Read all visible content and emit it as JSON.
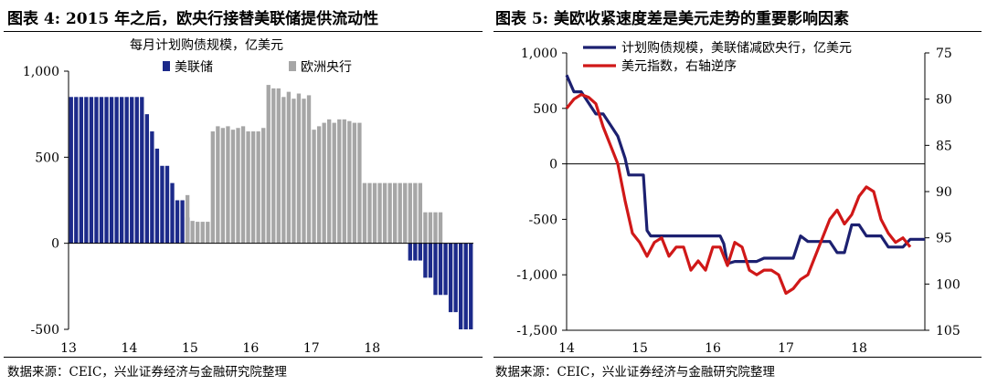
{
  "left": {
    "title": "图表 4:  2015 年之后，欧央行接替美联储提供流动性",
    "source": "数据来源：CEIC，兴业证券经济与金融研究院整理",
    "chart_data": {
      "type": "bar",
      "title": "每月计划购债规模，亿美元",
      "ylim": [
        -500,
        1000
      ],
      "yticks": [
        -500,
        0,
        500,
        1000
      ],
      "ytick_labels": [
        "-500",
        "0",
        "500",
        "1,000"
      ],
      "xticks": [
        {
          "year": 2013,
          "label": "13"
        },
        {
          "year": 2014,
          "label": "14"
        },
        {
          "year": 2015,
          "label": "15"
        },
        {
          "year": 2016,
          "label": "16"
        },
        {
          "year": 2017,
          "label": "17"
        },
        {
          "year": 2018,
          "label": "18"
        }
      ],
      "x_start_year": 2013,
      "legend_position": "top",
      "series": [
        {
          "name": "美联储",
          "color": "#1c2a8a",
          "values": [
            850,
            850,
            850,
            850,
            850,
            850,
            850,
            850,
            850,
            850,
            850,
            850,
            850,
            850,
            850,
            750,
            650,
            550,
            450,
            450,
            350,
            250,
            250,
            150,
            0,
            0,
            0,
            0,
            0,
            0,
            0,
            0,
            0,
            0,
            0,
            0,
            0,
            0,
            0,
            0,
            0,
            0,
            0,
            0,
            0,
            0,
            0,
            0,
            0,
            0,
            0,
            0,
            0,
            0,
            0,
            0,
            0,
            0,
            0,
            0,
            0,
            0,
            0,
            0,
            0,
            0,
            0,
            -100,
            -100,
            -100,
            -200,
            -200,
            -300,
            -300,
            -300,
            -400,
            -400,
            -500,
            -500,
            -500
          ]
        },
        {
          "name": "欧洲央行",
          "color": "#a6a6a6",
          "values": [
            0,
            0,
            0,
            0,
            0,
            0,
            0,
            0,
            0,
            0,
            0,
            0,
            0,
            0,
            0,
            0,
            0,
            0,
            0,
            0,
            0,
            0,
            0,
            280,
            130,
            125,
            125,
            125,
            650,
            680,
            670,
            680,
            660,
            670,
            680,
            650,
            650,
            650,
            670,
            920,
            900,
            900,
            850,
            880,
            840,
            870,
            840,
            860,
            660,
            680,
            700,
            720,
            700,
            720,
            720,
            710,
            700,
            700,
            350,
            350,
            350,
            350,
            350,
            350,
            350,
            350,
            350,
            350,
            350,
            350,
            180,
            180,
            180,
            180,
            0,
            0,
            0,
            0,
            0,
            0
          ]
        }
      ]
    }
  },
  "right": {
    "title": "图表 5:  美欧收紧速度差是美元走势的重要影响因素",
    "source": "数据来源：CEIC，兴业证券经济与金融研究院整理",
    "chart_data": {
      "type": "line",
      "ylim": [
        -1500,
        1000
      ],
      "yticks": [
        -1500,
        -1000,
        -500,
        0,
        500,
        1000
      ],
      "ytick_labels": [
        "-1,500",
        "-1,000",
        "-500",
        "0",
        "500",
        "1,000"
      ],
      "y2lim": [
        105,
        75
      ],
      "y2_inverted": true,
      "y2ticks": [
        75,
        80,
        85,
        90,
        95,
        100,
        105
      ],
      "y2tick_labels": [
        "75",
        "80",
        "85",
        "90",
        "95",
        "100",
        "105"
      ],
      "xlim": [
        2014,
        2018.9
      ],
      "xticks": [
        {
          "year": 2014,
          "label": "14"
        },
        {
          "year": 2015,
          "label": "15"
        },
        {
          "year": 2016,
          "label": "16"
        },
        {
          "year": 2017,
          "label": "17"
        },
        {
          "year": 2018,
          "label": "18"
        }
      ],
      "legend_position": "top-right",
      "series": [
        {
          "name": "计划购债规模，美联储减欧央行，亿美元",
          "axis": "left",
          "color": "#1c2070",
          "x": [
            2014.0,
            2014.1,
            2014.2,
            2014.3,
            2014.4,
            2014.5,
            2014.6,
            2014.7,
            2014.75,
            2014.8,
            2014.85,
            2014.9,
            2014.95,
            2015.0,
            2015.05,
            2015.1,
            2015.15,
            2015.2,
            2015.3,
            2015.4,
            2015.5,
            2015.6,
            2015.7,
            2015.8,
            2015.9,
            2016.0,
            2016.1,
            2016.15,
            2016.2,
            2016.3,
            2016.4,
            2016.5,
            2016.6,
            2016.7,
            2016.8,
            2016.9,
            2017.0,
            2017.1,
            2017.2,
            2017.3,
            2017.4,
            2017.5,
            2017.6,
            2017.7,
            2017.8,
            2017.9,
            2018.0,
            2018.1,
            2018.2,
            2018.3,
            2018.4,
            2018.5,
            2018.6,
            2018.7,
            2018.8,
            2018.9
          ],
          "values": [
            800,
            650,
            650,
            550,
            450,
            450,
            350,
            250,
            150,
            50,
            -100,
            -100,
            -100,
            -100,
            -100,
            -600,
            -650,
            -650,
            -650,
            -650,
            -650,
            -650,
            -650,
            -650,
            -650,
            -650,
            -650,
            -720,
            -900,
            -880,
            -880,
            -880,
            -880,
            -850,
            -850,
            -850,
            -850,
            -850,
            -650,
            -700,
            -700,
            -700,
            -700,
            -800,
            -800,
            -550,
            -550,
            -650,
            -650,
            -650,
            -750,
            -750,
            -750,
            -680,
            -680,
            -680
          ]
        },
        {
          "name": "美元指数，右轴逆序",
          "axis": "right",
          "color": "#d01818",
          "x": [
            2014.0,
            2014.05,
            2014.1,
            2014.2,
            2014.3,
            2014.4,
            2014.5,
            2014.6,
            2014.7,
            2014.8,
            2014.9,
            2015.0,
            2015.1,
            2015.2,
            2015.3,
            2015.4,
            2015.5,
            2015.6,
            2015.7,
            2015.8,
            2015.9,
            2016.0,
            2016.1,
            2016.2,
            2016.3,
            2016.4,
            2016.5,
            2016.6,
            2016.7,
            2016.8,
            2016.9,
            2017.0,
            2017.1,
            2017.2,
            2017.3,
            2017.4,
            2017.5,
            2017.6,
            2017.7,
            2017.8,
            2017.9,
            2018.0,
            2018.1,
            2018.2,
            2018.3,
            2018.4,
            2018.5,
            2018.6,
            2018.7
          ],
          "values": [
            81,
            80.5,
            80,
            79.5,
            79.8,
            80.5,
            83,
            85,
            87,
            91,
            94.5,
            95.5,
            97,
            95.5,
            95,
            97,
            96,
            96,
            98.5,
            97.5,
            98.5,
            96,
            96,
            98,
            95.5,
            96,
            98.5,
            99,
            98.5,
            98.5,
            99,
            101,
            100.5,
            99.5,
            99,
            97,
            95,
            93,
            92,
            93.5,
            92.5,
            90.5,
            89.5,
            90,
            93,
            94.5,
            95.5,
            95,
            96
          ]
        }
      ]
    }
  }
}
